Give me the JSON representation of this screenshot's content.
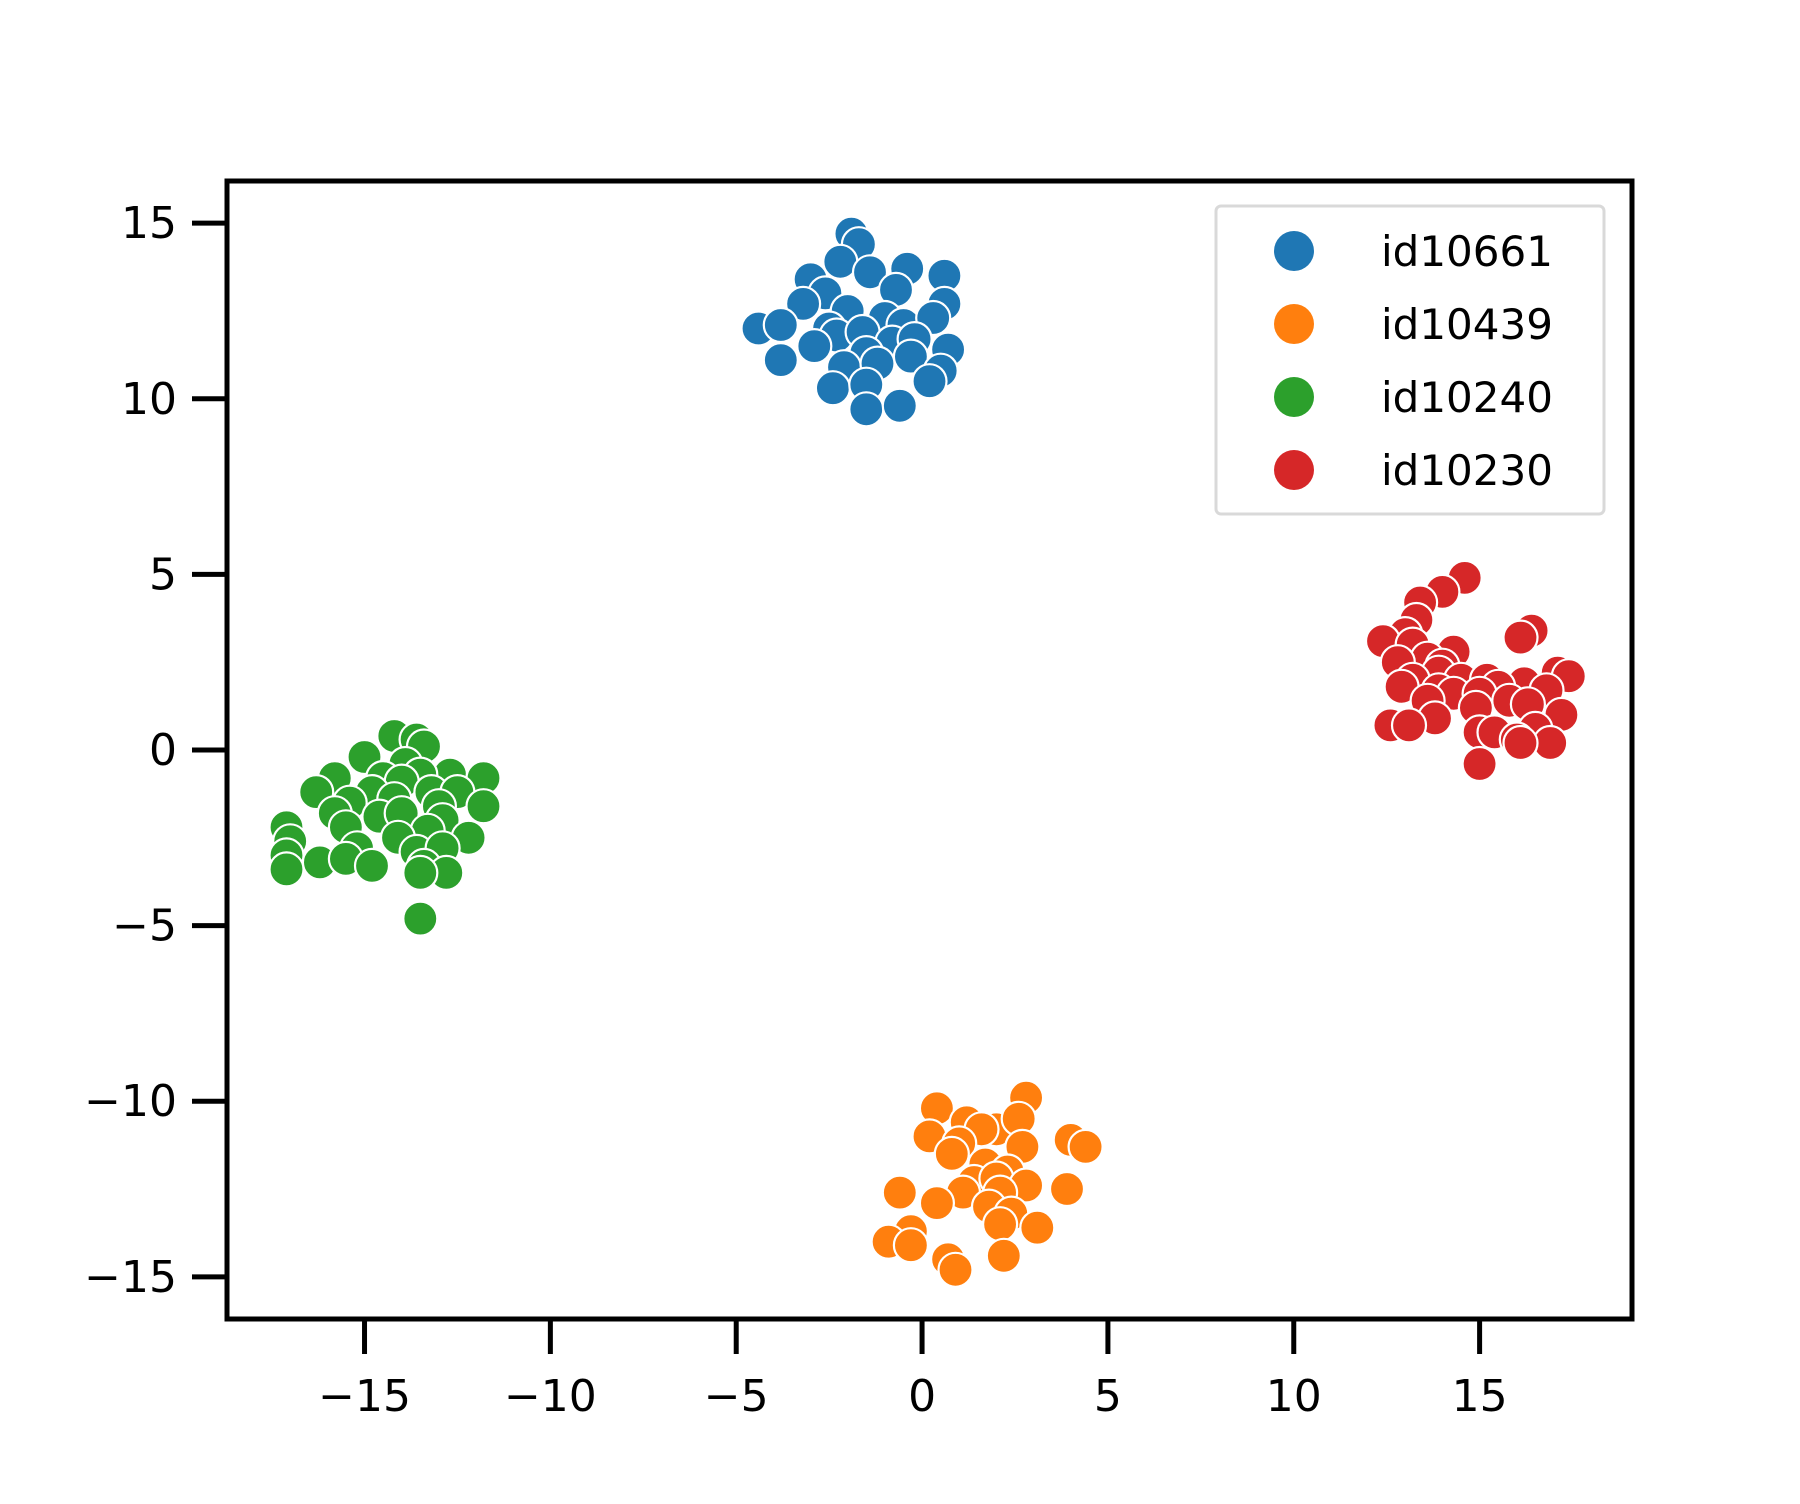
{
  "chart_data": {
    "type": "scatter",
    "title": "",
    "xlabel": "",
    "ylabel": "",
    "xlim": [
      -18.7,
      19.1
    ],
    "ylim": [
      -16.2,
      16.2
    ],
    "grid": false,
    "legend_position": "top-right",
    "x_ticks": [
      -15,
      -10,
      -5,
      0,
      5,
      10,
      15
    ],
    "x_tick_labels": [
      "−15",
      "−10",
      "−5",
      "0",
      "5",
      "10",
      "15"
    ],
    "y_ticks": [
      15,
      10,
      5,
      0,
      -5,
      -10,
      -15
    ],
    "y_tick_labels": [
      "15",
      "10",
      "5",
      "0",
      "−5",
      "−10",
      "−15"
    ],
    "series": [
      {
        "name": "id10661",
        "color": "#1f77b4",
        "points": [
          [
            -1.9,
            14.7
          ],
          [
            -1.7,
            14.4
          ],
          [
            -2.2,
            13.9
          ],
          [
            -1.4,
            13.6
          ],
          [
            -0.4,
            13.7
          ],
          [
            0.6,
            13.5
          ],
          [
            -3.0,
            13.4
          ],
          [
            -2.6,
            13.0
          ],
          [
            -0.7,
            13.1
          ],
          [
            0.6,
            12.7
          ],
          [
            -3.2,
            12.7
          ],
          [
            -2.0,
            12.5
          ],
          [
            -1.0,
            12.3
          ],
          [
            -0.5,
            12.1
          ],
          [
            0.3,
            12.3
          ],
          [
            -4.4,
            12.0
          ],
          [
            -3.8,
            12.1
          ],
          [
            -2.5,
            12.0
          ],
          [
            -2.3,
            11.8
          ],
          [
            -1.6,
            11.9
          ],
          [
            -0.8,
            11.6
          ],
          [
            -0.2,
            11.7
          ],
          [
            -2.9,
            11.5
          ],
          [
            -1.5,
            11.3
          ],
          [
            -0.3,
            11.2
          ],
          [
            0.7,
            11.4
          ],
          [
            -3.8,
            11.1
          ],
          [
            -2.1,
            10.9
          ],
          [
            -1.2,
            11.0
          ],
          [
            0.5,
            10.8
          ],
          [
            -2.4,
            10.3
          ],
          [
            -1.5,
            10.4
          ],
          [
            0.2,
            10.5
          ],
          [
            -1.5,
            9.7
          ],
          [
            -0.6,
            9.8
          ]
        ]
      },
      {
        "name": "id10439",
        "color": "#ff7f0e",
        "points": [
          [
            2.8,
            -9.9
          ],
          [
            0.4,
            -10.2
          ],
          [
            1.2,
            -10.6
          ],
          [
            2.0,
            -10.8
          ],
          [
            2.6,
            -10.5
          ],
          [
            1.6,
            -10.8
          ],
          [
            0.2,
            -11.0
          ],
          [
            1.0,
            -11.2
          ],
          [
            2.7,
            -11.3
          ],
          [
            4.0,
            -11.1
          ],
          [
            4.4,
            -11.3
          ],
          [
            0.8,
            -11.5
          ],
          [
            1.7,
            -11.8
          ],
          [
            2.3,
            -12.0
          ],
          [
            1.4,
            -12.3
          ],
          [
            2.0,
            -12.2
          ],
          [
            2.8,
            -12.4
          ],
          [
            -0.6,
            -12.6
          ],
          [
            1.1,
            -12.6
          ],
          [
            2.1,
            -12.6
          ],
          [
            3.9,
            -12.5
          ],
          [
            0.4,
            -12.9
          ],
          [
            1.8,
            -13.0
          ],
          [
            2.4,
            -13.2
          ],
          [
            2.1,
            -13.5
          ],
          [
            3.1,
            -13.6
          ],
          [
            -0.3,
            -13.7
          ],
          [
            -0.9,
            -14.0
          ],
          [
            -0.3,
            -14.1
          ],
          [
            0.7,
            -14.5
          ],
          [
            2.2,
            -14.4
          ],
          [
            0.9,
            -14.8
          ]
        ]
      },
      {
        "name": "id10240",
        "color": "#2ca02c",
        "points": [
          [
            -14.2,
            0.4
          ],
          [
            -13.6,
            0.3
          ],
          [
            -13.4,
            0.1
          ],
          [
            -15.0,
            -0.2
          ],
          [
            -13.9,
            -0.4
          ],
          [
            -12.7,
            -0.7
          ],
          [
            -11.8,
            -0.8
          ],
          [
            -15.8,
            -0.8
          ],
          [
            -14.5,
            -0.8
          ],
          [
            -13.5,
            -0.7
          ],
          [
            -14.0,
            -0.9
          ],
          [
            -16.3,
            -1.2
          ],
          [
            -14.8,
            -1.2
          ],
          [
            -13.2,
            -1.2
          ],
          [
            -12.5,
            -1.2
          ],
          [
            -15.4,
            -1.5
          ],
          [
            -14.2,
            -1.4
          ],
          [
            -13.0,
            -1.6
          ],
          [
            -11.8,
            -1.6
          ],
          [
            -15.8,
            -1.8
          ],
          [
            -14.6,
            -1.9
          ],
          [
            -14.0,
            -1.8
          ],
          [
            -12.9,
            -2.0
          ],
          [
            -17.1,
            -2.2
          ],
          [
            -15.5,
            -2.2
          ],
          [
            -13.3,
            -2.3
          ],
          [
            -17.0,
            -2.6
          ],
          [
            -14.1,
            -2.5
          ],
          [
            -12.2,
            -2.5
          ],
          [
            -15.2,
            -2.8
          ],
          [
            -13.6,
            -2.9
          ],
          [
            -12.9,
            -2.8
          ],
          [
            -17.1,
            -3.0
          ],
          [
            -16.2,
            -3.2
          ],
          [
            -15.5,
            -3.1
          ],
          [
            -14.8,
            -3.3
          ],
          [
            -13.4,
            -3.3
          ],
          [
            -17.1,
            -3.4
          ],
          [
            -12.8,
            -3.5
          ],
          [
            -13.5,
            -3.5
          ],
          [
            -13.5,
            -4.8
          ]
        ]
      },
      {
        "name": "id10230",
        "color": "#d62728",
        "points": [
          [
            14.6,
            4.9
          ],
          [
            14.0,
            4.5
          ],
          [
            13.4,
            4.2
          ],
          [
            13.3,
            3.7
          ],
          [
            13.0,
            3.3
          ],
          [
            16.4,
            3.4
          ],
          [
            16.1,
            3.2
          ],
          [
            12.4,
            3.1
          ],
          [
            13.2,
            3.0
          ],
          [
            14.3,
            2.8
          ],
          [
            13.6,
            2.6
          ],
          [
            12.8,
            2.5
          ],
          [
            14.0,
            2.4
          ],
          [
            13.9,
            2.2
          ],
          [
            17.1,
            2.2
          ],
          [
            17.4,
            2.1
          ],
          [
            13.2,
            2.0
          ],
          [
            14.5,
            2.0
          ],
          [
            15.2,
            2.0
          ],
          [
            16.2,
            1.9
          ],
          [
            15.5,
            1.8
          ],
          [
            12.9,
            1.8
          ],
          [
            13.9,
            1.7
          ],
          [
            14.3,
            1.6
          ],
          [
            15.0,
            1.6
          ],
          [
            16.8,
            1.7
          ],
          [
            13.6,
            1.4
          ],
          [
            15.8,
            1.4
          ],
          [
            16.3,
            1.3
          ],
          [
            14.9,
            1.2
          ],
          [
            17.2,
            1.0
          ],
          [
            13.8,
            0.9
          ],
          [
            12.6,
            0.7
          ],
          [
            13.1,
            0.7
          ],
          [
            15.0,
            0.5
          ],
          [
            16.5,
            0.6
          ],
          [
            15.4,
            0.5
          ],
          [
            16.0,
            0.3
          ],
          [
            16.9,
            0.2
          ],
          [
            16.1,
            0.2
          ],
          [
            15.0,
            -0.4
          ]
        ]
      }
    ]
  }
}
